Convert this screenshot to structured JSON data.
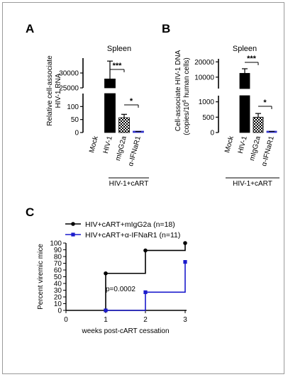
{
  "panels": {
    "A": {
      "letter": "A"
    },
    "B": {
      "letter": "B"
    },
    "C": {
      "letter": "C"
    }
  },
  "chart_data": [
    {
      "panel": "A",
      "type": "bar",
      "title": "Spleen",
      "ylabel_lines": [
        "Relative cell-associate",
        "HIV-1 RNA"
      ],
      "categories": [
        "Mock",
        "HIV-1",
        "mIgG2a",
        "α-IFNaR1"
      ],
      "values": [
        0,
        28000,
        57,
        3
      ],
      "errors": [
        0,
        6000,
        13,
        1
      ],
      "fills": [
        "#000000",
        "#000000",
        "pattern",
        "#3333cc"
      ],
      "y_break": true,
      "lower_range": [
        0,
        150
      ],
      "upper_range": [
        25000,
        35000
      ],
      "y_ticks_lower": [
        0,
        50,
        100
      ],
      "y_ticks_upper": [
        25000,
        30000
      ],
      "y_tick_labels_upper": [
        "25000",
        "30000"
      ],
      "group_label": "HIV-1+cART",
      "annotations": [
        {
          "label": "***",
          "from": "HIV-1",
          "to": "mIgG2a"
        },
        {
          "label": "*",
          "from": "mIgG2a",
          "to": "α-IFNaR1"
        }
      ]
    },
    {
      "panel": "B",
      "type": "bar",
      "title": "Spleen",
      "ylabel_lines": [
        "Cell-associate HIV-1 DNA",
        "(copies/10",
        "6",
        " human cells)"
      ],
      "categories": [
        "Mock",
        "HIV-1",
        "mIgG2a",
        "α-IFNaR1"
      ],
      "values": [
        0,
        12500,
        500,
        25
      ],
      "errors": [
        0,
        3000,
        120,
        10
      ],
      "fills": [
        "#000000",
        "#000000",
        "pattern",
        "#3333cc"
      ],
      "y_break": true,
      "lower_range": [
        0,
        1200
      ],
      "upper_range": [
        2500,
        22000
      ],
      "y_ticks_lower": [
        0,
        500,
        1000
      ],
      "y_ticks_upper": [
        10000,
        20000
      ],
      "y_tick_labels_upper": [
        "10000",
        "20000"
      ],
      "group_label": "HIV-1+cART",
      "annotations": [
        {
          "label": "***",
          "from": "HIV-1",
          "to": "mIgG2a"
        },
        {
          "label": "*",
          "from": "mIgG2a",
          "to": "α-IFNaR1"
        }
      ]
    },
    {
      "panel": "C",
      "type": "line",
      "step": true,
      "xlabel": "weeks post-cART cessation",
      "ylabel": "Percent viremic mice",
      "xlim": [
        0,
        3
      ],
      "ylim": [
        0,
        100
      ],
      "x_ticks": [
        0,
        1,
        2,
        3
      ],
      "y_ticks": [
        0,
        10,
        20,
        30,
        40,
        50,
        60,
        70,
        80,
        90,
        100
      ],
      "series": [
        {
          "name": "HIV+cART+mIgG2a (n=18)",
          "color": "#000000",
          "marker": "circle",
          "x": [
            1,
            1,
            2,
            2,
            3,
            3
          ],
          "y": [
            0,
            55,
            55,
            89,
            89,
            100
          ],
          "marker_x": [
            1,
            1,
            2,
            3
          ],
          "marker_y": [
            0,
            55,
            89,
            100
          ]
        },
        {
          "name": "HIV+cART+α-IFNaR1 (n=11)",
          "color": "#1a1acc",
          "marker": "square",
          "x": [
            1,
            2,
            2,
            3,
            3
          ],
          "y": [
            0,
            0,
            27,
            27,
            72
          ],
          "marker_x": [
            1,
            2,
            3
          ],
          "marker_y": [
            0,
            27,
            72
          ]
        }
      ],
      "annotation": "p=0.0002",
      "annotation_position": "center"
    }
  ]
}
